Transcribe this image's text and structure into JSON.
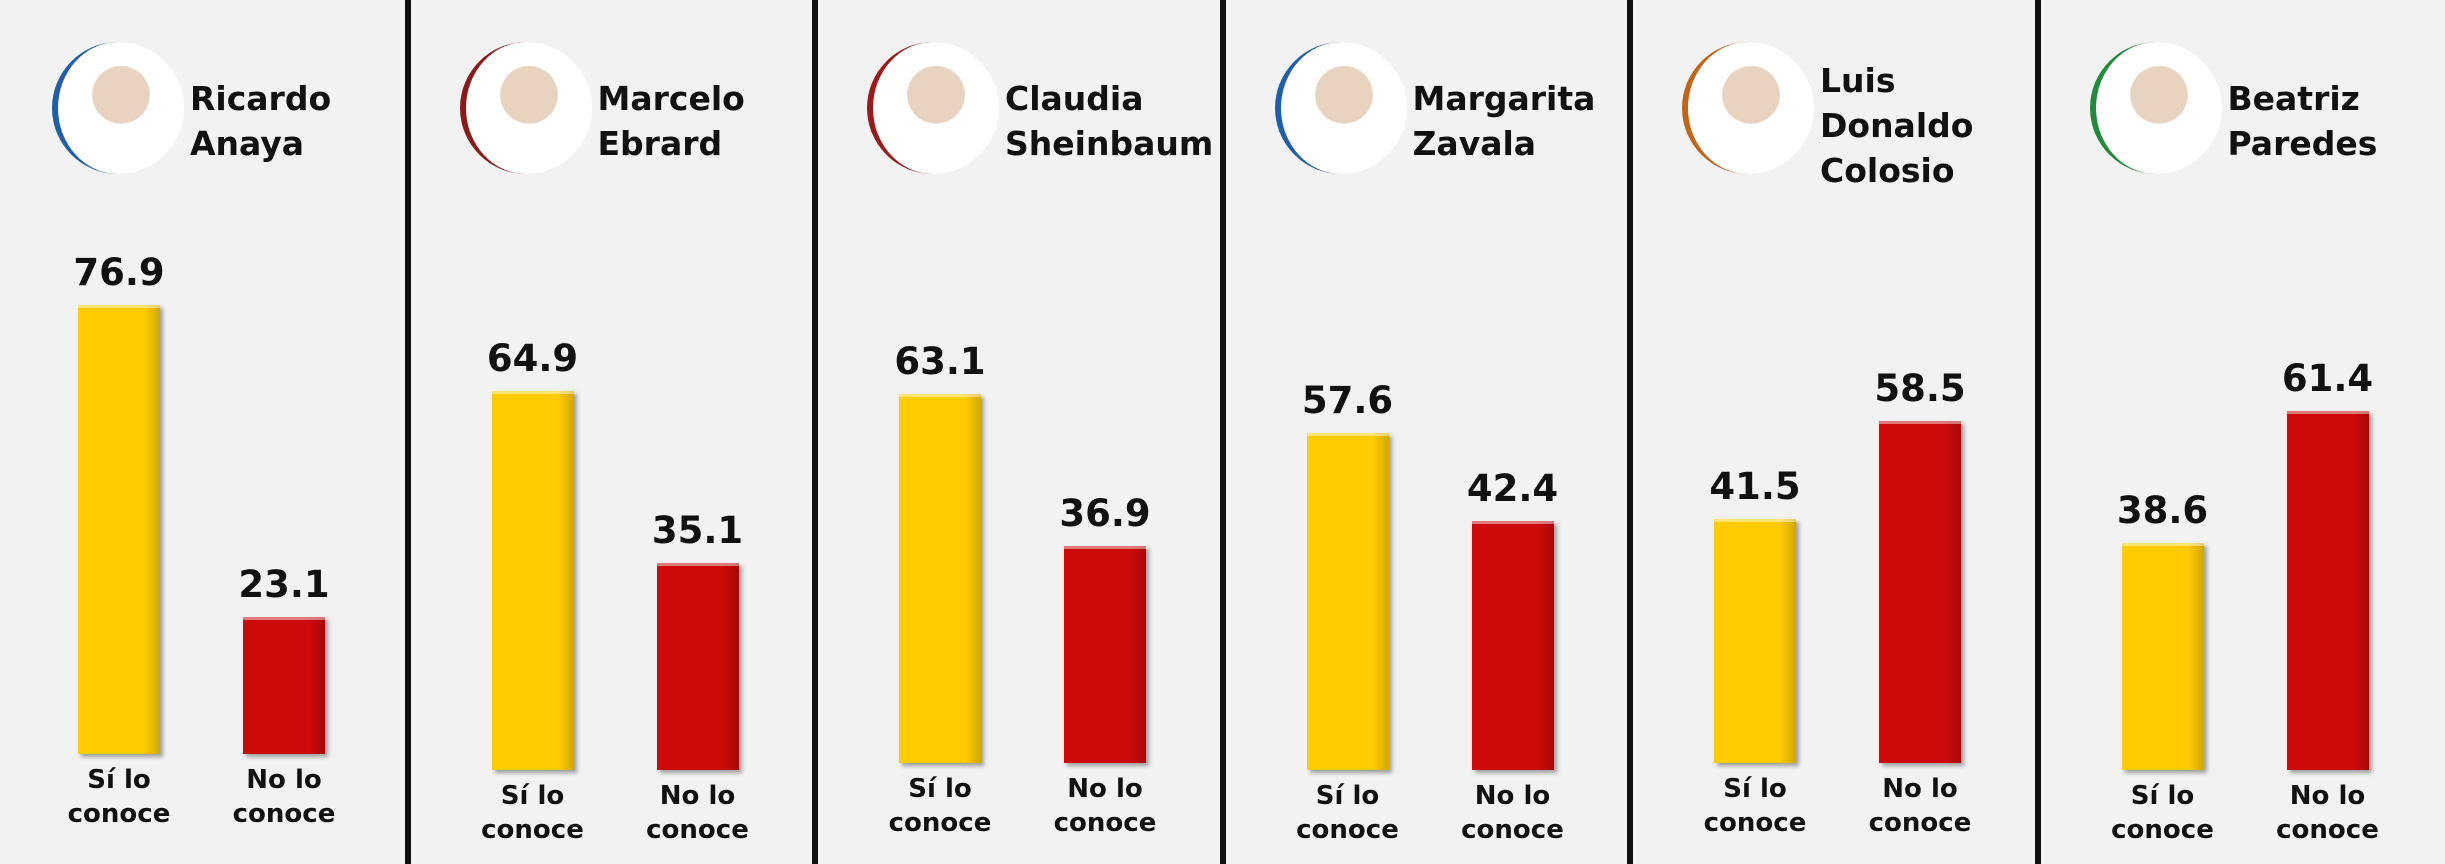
{
  "chart_data": [
    {
      "type": "bar",
      "title": "Ricardo Anaya",
      "categories": [
        "Sí lo conoce",
        "No lo conoce"
      ],
      "values": [
        76.9,
        23.1
      ],
      "colors": [
        "#ffcc00",
        "#cc0a0a"
      ]
    },
    {
      "type": "bar",
      "title": "Marcelo Ebrard",
      "categories": [
        "Sí lo conoce",
        "No lo conoce"
      ],
      "values": [
        64.9,
        35.1
      ],
      "colors": [
        "#ffcc00",
        "#cc0a0a"
      ]
    },
    {
      "type": "bar",
      "title": "Claudia Sheinbaum",
      "categories": [
        "Sí lo conoce",
        "No lo conoce"
      ],
      "values": [
        63.1,
        36.9
      ],
      "colors": [
        "#ffcc00",
        "#cc0a0a"
      ]
    },
    {
      "type": "bar",
      "title": "Margarita Zavala",
      "categories": [
        "Sí lo conoce",
        "No lo conoce"
      ],
      "values": [
        57.6,
        42.4
      ],
      "colors": [
        "#ffcc00",
        "#cc0a0a"
      ]
    },
    {
      "type": "bar",
      "title": "Luis Donaldo Colosio",
      "categories": [
        "Sí lo conoce",
        "No lo conoce"
      ],
      "values": [
        41.5,
        58.5
      ],
      "colors": [
        "#ffcc00",
        "#cc0a0a"
      ]
    },
    {
      "type": "bar",
      "title": "Beatriz Paredes",
      "categories": [
        "Sí lo conoce",
        "No lo conoce"
      ],
      "values": [
        38.6,
        61.4
      ],
      "colors": [
        "#ffcc00",
        "#cc0a0a"
      ]
    }
  ]
}
